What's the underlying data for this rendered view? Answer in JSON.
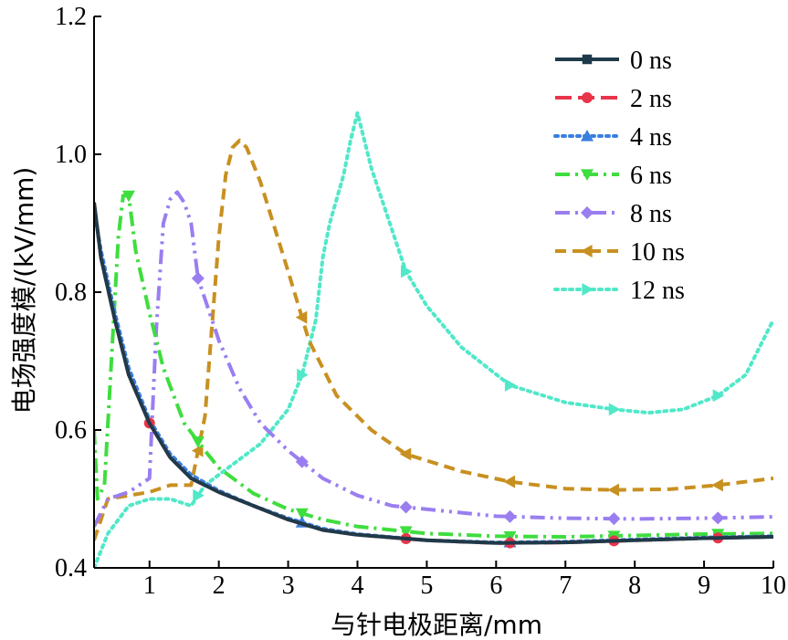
{
  "chart_data": {
    "type": "line",
    "xlabel": "与针电极距离/mm",
    "ylabel": "电场强度模/(kV/mm)",
    "xlim": [
      0.2,
      10
    ],
    "ylim": [
      0.4,
      1.2
    ],
    "xticks": [
      1,
      2,
      3,
      4,
      5,
      6,
      7,
      8,
      9,
      10
    ],
    "yticks": [
      0.4,
      0.6,
      0.8,
      1.0,
      1.2
    ],
    "xtick_labels": [
      "1",
      "2",
      "3",
      "4",
      "5",
      "6",
      "7",
      "8",
      "9",
      "10"
    ],
    "ytick_labels": [
      "0.4",
      "0.6",
      "0.8",
      "1.0",
      "1.2"
    ],
    "grid": false,
    "legend_position": "top-right",
    "series": [
      {
        "name": "0 ns",
        "color": "#1f3a4a",
        "dash": "solid",
        "marker": "square",
        "x": [
          0.2,
          0.3,
          0.5,
          0.7,
          1.0,
          1.3,
          1.6,
          2.0,
          2.5,
          3.0,
          3.5,
          4.0,
          5.0,
          6.0,
          7.0,
          8.0,
          9.0,
          10.0
        ],
        "y": [
          0.93,
          0.85,
          0.76,
          0.68,
          0.61,
          0.56,
          0.53,
          0.51,
          0.49,
          0.47,
          0.455,
          0.448,
          0.44,
          0.436,
          0.437,
          0.44,
          0.443,
          0.445
        ],
        "marker_x": []
      },
      {
        "name": "2 ns",
        "color": "#e8354a",
        "dash": "longdash",
        "marker": "circle",
        "x": [
          0.2,
          0.3,
          0.5,
          0.7,
          1.0,
          1.3,
          1.6,
          2.0,
          2.5,
          3.0,
          3.5,
          4.0,
          5.0,
          6.0,
          7.0,
          8.0,
          9.0,
          10.0
        ],
        "y": [
          0.93,
          0.85,
          0.76,
          0.68,
          0.61,
          0.56,
          0.53,
          0.51,
          0.49,
          0.47,
          0.455,
          0.448,
          0.44,
          0.436,
          0.437,
          0.44,
          0.443,
          0.445
        ],
        "marker_x": [
          1.0,
          4.7,
          6.2,
          7.7,
          9.2
        ]
      },
      {
        "name": "4 ns",
        "color": "#3a7fe0",
        "dash": "dotted",
        "marker": "triangle-up",
        "x": [
          0.2,
          0.3,
          0.5,
          0.7,
          1.0,
          1.3,
          1.6,
          2.0,
          2.5,
          3.0,
          3.5,
          4.0,
          5.0,
          6.0,
          7.0,
          8.0,
          9.0,
          10.0
        ],
        "y": [
          0.92,
          0.86,
          0.77,
          0.69,
          0.615,
          0.565,
          0.535,
          0.512,
          0.49,
          0.472,
          0.457,
          0.449,
          0.44,
          0.437,
          0.438,
          0.441,
          0.444,
          0.446
        ],
        "marker_x": [
          3.2,
          6.2
        ]
      },
      {
        "name": "6 ns",
        "color": "#3fdd3f",
        "dash": "dashdot",
        "marker": "triangle-down",
        "x": [
          0.2,
          0.25,
          0.35,
          0.45,
          0.55,
          0.62,
          0.7,
          0.8,
          1.0,
          1.2,
          1.5,
          1.8,
          2.0,
          2.5,
          3.0,
          3.5,
          4.0,
          5.0,
          6.0,
          7.0,
          8.0,
          9.0,
          10.0
        ],
        "y": [
          0.6,
          0.5,
          0.52,
          0.7,
          0.88,
          0.94,
          0.94,
          0.86,
          0.77,
          0.69,
          0.61,
          0.57,
          0.545,
          0.508,
          0.485,
          0.47,
          0.46,
          0.45,
          0.446,
          0.445,
          0.447,
          0.449,
          0.45
        ],
        "marker_x": [
          0.7,
          1.7,
          3.2,
          4.7,
          6.2,
          7.7,
          9.2
        ]
      },
      {
        "name": "8 ns",
        "color": "#9a7ef0",
        "dash": "dashdotdot",
        "marker": "diamond",
        "x": [
          0.2,
          0.4,
          0.7,
          1.0,
          1.1,
          1.2,
          1.3,
          1.4,
          1.5,
          1.6,
          1.7,
          2.0,
          2.3,
          2.6,
          3.0,
          3.5,
          4.0,
          4.5,
          5.0,
          6.0,
          7.0,
          8.0,
          9.0,
          10.0
        ],
        "y": [
          0.46,
          0.5,
          0.51,
          0.53,
          0.75,
          0.9,
          0.935,
          0.945,
          0.93,
          0.9,
          0.82,
          0.73,
          0.66,
          0.61,
          0.57,
          0.53,
          0.505,
          0.49,
          0.485,
          0.475,
          0.472,
          0.471,
          0.472,
          0.474
        ],
        "marker_x": [
          1.7,
          3.2,
          4.7,
          6.2,
          7.7,
          9.2
        ]
      },
      {
        "name": "10 ns",
        "color": "#c89020",
        "dash": "dashed",
        "marker": "triangle-left",
        "x": [
          0.2,
          0.4,
          0.7,
          1.0,
          1.3,
          1.6,
          1.8,
          1.9,
          2.0,
          2.1,
          2.2,
          2.3,
          2.4,
          2.6,
          3.0,
          3.3,
          3.7,
          4.2,
          4.7,
          5.5,
          6.2,
          7.0,
          7.7,
          8.5,
          9.2,
          10.0
        ],
        "y": [
          0.44,
          0.5,
          0.505,
          0.51,
          0.52,
          0.52,
          0.62,
          0.75,
          0.88,
          0.97,
          1.01,
          1.02,
          1.01,
          0.96,
          0.83,
          0.73,
          0.65,
          0.6,
          0.565,
          0.54,
          0.525,
          0.515,
          0.513,
          0.514,
          0.52,
          0.53
        ],
        "marker_x": [
          1.7,
          3.2,
          4.7,
          6.2,
          7.7,
          9.2
        ]
      },
      {
        "name": "12 ns",
        "color": "#50e8c8",
        "dash": "dotted",
        "marker": "triangle-right",
        "x": [
          0.2,
          0.4,
          0.7,
          1.0,
          1.3,
          1.6,
          1.8,
          2.2,
          2.6,
          3.0,
          3.2,
          3.4,
          3.5,
          3.6,
          3.8,
          3.9,
          4.0,
          4.2,
          4.5,
          4.7,
          5.0,
          5.5,
          6.2,
          7.0,
          7.7,
          8.2,
          8.7,
          9.2,
          9.6,
          9.8,
          10.0
        ],
        "y": [
          0.4,
          0.45,
          0.49,
          0.5,
          0.5,
          0.49,
          0.52,
          0.55,
          0.58,
          0.63,
          0.68,
          0.76,
          0.85,
          0.9,
          0.97,
          1.02,
          1.06,
          0.98,
          0.89,
          0.83,
          0.78,
          0.72,
          0.665,
          0.64,
          0.63,
          0.625,
          0.63,
          0.65,
          0.68,
          0.72,
          0.76
        ],
        "marker_x": [
          1.7,
          3.2,
          4.7,
          6.2,
          7.7,
          9.2
        ]
      }
    ]
  }
}
